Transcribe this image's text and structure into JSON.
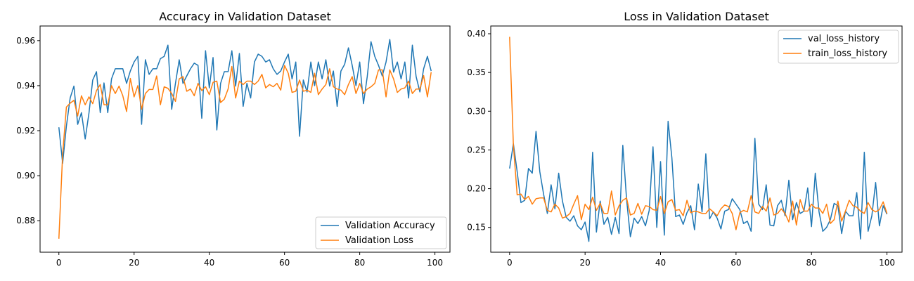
{
  "chart_data": [
    {
      "type": "line",
      "title": "Accuracy in Validation Dataset",
      "xlabel": "",
      "ylabel": "",
      "xlim": [
        -5,
        104
      ],
      "ylim": [
        0.866,
        0.9665
      ],
      "xticks": [
        0,
        20,
        40,
        60,
        80,
        100
      ],
      "yticks": [
        0.88,
        0.9,
        0.92,
        0.94,
        0.96
      ],
      "ytick_labels": [
        "0.88",
        "0.90",
        "0.92",
        "0.94",
        "0.96"
      ],
      "grid": false,
      "legend_position": "lower-right",
      "series": [
        {
          "name": "Validation Accuracy",
          "color": "#1f77b4",
          "values": [
            0.9215,
            0.9055,
            0.922,
            0.9345,
            0.9398,
            0.9228,
            0.928,
            0.9163,
            0.9278,
            0.9425,
            0.9462,
            0.928,
            0.9412,
            0.928,
            0.943,
            0.9475,
            0.9475,
            0.9475,
            0.941,
            0.9465,
            0.9505,
            0.953,
            0.9228,
            0.9515,
            0.945,
            0.9475,
            0.9475,
            0.952,
            0.953,
            0.958,
            0.9295,
            0.941,
            0.9515,
            0.941,
            0.9443,
            0.9475,
            0.95,
            0.949,
            0.9255,
            0.9555,
            0.939,
            0.9525,
            0.9203,
            0.941,
            0.9462,
            0.9462,
            0.9555,
            0.9398,
            0.9543,
            0.9308,
            0.941,
            0.9345,
            0.9505,
            0.954,
            0.953,
            0.9505,
            0.9515,
            0.9475,
            0.945,
            0.9465,
            0.9505,
            0.954,
            0.943,
            0.9505,
            0.9175,
            0.9425,
            0.9372,
            0.9505,
            0.94,
            0.9505,
            0.943,
            0.9515,
            0.9398,
            0.9465,
            0.9308,
            0.9465,
            0.9495,
            0.9568,
            0.949,
            0.94,
            0.9505,
            0.932,
            0.944,
            0.9595,
            0.953,
            0.949,
            0.9443,
            0.9505,
            0.9605,
            0.946,
            0.9505,
            0.943,
            0.9505,
            0.9345,
            0.958,
            0.944,
            0.9372,
            0.9475,
            0.953,
            0.9465
          ]
        },
        {
          "name": "Validation Loss",
          "color": "#ff7f0e",
          "values": [
            0.872,
            0.9095,
            0.9305,
            0.9322,
            0.9335,
            0.9265,
            0.9355,
            0.9315,
            0.935,
            0.932,
            0.9378,
            0.9405,
            0.9315,
            0.9315,
            0.94,
            0.9365,
            0.9398,
            0.9355,
            0.9285,
            0.9432,
            0.935,
            0.94,
            0.9295,
            0.9365,
            0.9383,
            0.9383,
            0.9443,
            0.9315,
            0.9395,
            0.9388,
            0.9365,
            0.933,
            0.943,
            0.944,
            0.9375,
            0.9385,
            0.9355,
            0.941,
            0.9378,
            0.9395,
            0.936,
            0.9415,
            0.942,
            0.9325,
            0.934,
            0.9385,
            0.9485,
            0.9345,
            0.942,
            0.9405,
            0.942,
            0.942,
            0.9405,
            0.942,
            0.945,
            0.939,
            0.9405,
            0.9395,
            0.941,
            0.938,
            0.949,
            0.9455,
            0.937,
            0.9375,
            0.9425,
            0.9375,
            0.938,
            0.937,
            0.9455,
            0.936,
            0.9385,
            0.9405,
            0.9475,
            0.9395,
            0.9385,
            0.938,
            0.936,
            0.9405,
            0.944,
            0.9365,
            0.941,
            0.9365,
            0.9385,
            0.9395,
            0.941,
            0.947,
            0.947,
            0.935,
            0.947,
            0.943,
            0.937,
            0.9385,
            0.939,
            0.942,
            0.9365,
            0.9385,
            0.9385,
            0.9445,
            0.935,
            0.946
          ]
        }
      ]
    },
    {
      "type": "line",
      "title": "Loss in Validation Dataset",
      "xlabel": "",
      "ylabel": "",
      "xlim": [
        -5,
        104
      ],
      "ylim": [
        0.118,
        0.41
      ],
      "xticks": [
        0,
        20,
        40,
        60,
        80,
        100
      ],
      "yticks": [
        0.15,
        0.2,
        0.25,
        0.3,
        0.35,
        0.4
      ],
      "ytick_labels": [
        "0.15",
        "0.20",
        "0.25",
        "0.30",
        "0.35",
        "0.40"
      ],
      "grid": false,
      "legend_position": "upper-right",
      "series": [
        {
          "name": "val_loss_history",
          "color": "#1f77b4",
          "values": [
            0.226,
            0.258,
            0.222,
            0.182,
            0.185,
            0.226,
            0.22,
            0.274,
            0.222,
            0.193,
            0.168,
            0.205,
            0.174,
            0.22,
            0.184,
            0.163,
            0.158,
            0.165,
            0.152,
            0.147,
            0.157,
            0.132,
            0.247,
            0.144,
            0.184,
            0.154,
            0.163,
            0.141,
            0.163,
            0.142,
            0.256,
            0.186,
            0.138,
            0.162,
            0.155,
            0.164,
            0.152,
            0.172,
            0.254,
            0.15,
            0.235,
            0.14,
            0.287,
            0.24,
            0.164,
            0.166,
            0.154,
            0.169,
            0.178,
            0.147,
            0.206,
            0.17,
            0.245,
            0.161,
            0.17,
            0.162,
            0.148,
            0.171,
            0.173,
            0.187,
            0.18,
            0.173,
            0.155,
            0.158,
            0.145,
            0.265,
            0.18,
            0.173,
            0.205,
            0.153,
            0.152,
            0.178,
            0.185,
            0.165,
            0.211,
            0.16,
            0.182,
            0.168,
            0.171,
            0.201,
            0.151,
            0.22,
            0.17,
            0.145,
            0.15,
            0.16,
            0.181,
            0.178,
            0.142,
            0.171,
            0.165,
            0.165,
            0.195,
            0.135,
            0.247,
            0.145,
            0.165,
            0.208,
            0.152,
            0.178,
            0.167
          ]
        },
        {
          "name": "train_loss_history",
          "color": "#ff7f0e",
          "values": [
            0.396,
            0.256,
            0.192,
            0.193,
            0.186,
            0.19,
            0.18,
            0.187,
            0.188,
            0.188,
            0.172,
            0.17,
            0.18,
            0.175,
            0.162,
            0.164,
            0.168,
            0.18,
            0.191,
            0.16,
            0.18,
            0.173,
            0.189,
            0.172,
            0.181,
            0.168,
            0.168,
            0.197,
            0.166,
            0.178,
            0.185,
            0.188,
            0.166,
            0.168,
            0.181,
            0.167,
            0.178,
            0.177,
            0.173,
            0.172,
            0.19,
            0.168,
            0.183,
            0.186,
            0.172,
            0.173,
            0.165,
            0.185,
            0.169,
            0.171,
            0.17,
            0.168,
            0.168,
            0.174,
            0.17,
            0.165,
            0.174,
            0.179,
            0.177,
            0.168,
            0.147,
            0.169,
            0.172,
            0.17,
            0.191,
            0.17,
            0.168,
            0.177,
            0.171,
            0.188,
            0.166,
            0.168,
            0.174,
            0.168,
            0.157,
            0.184,
            0.153,
            0.186,
            0.171,
            0.171,
            0.18,
            0.175,
            0.175,
            0.168,
            0.18,
            0.155,
            0.16,
            0.184,
            0.158,
            0.171,
            0.185,
            0.178,
            0.176,
            0.171,
            0.168,
            0.182,
            0.173,
            0.17,
            0.173,
            0.183,
            0.168
          ]
        }
      ]
    }
  ]
}
